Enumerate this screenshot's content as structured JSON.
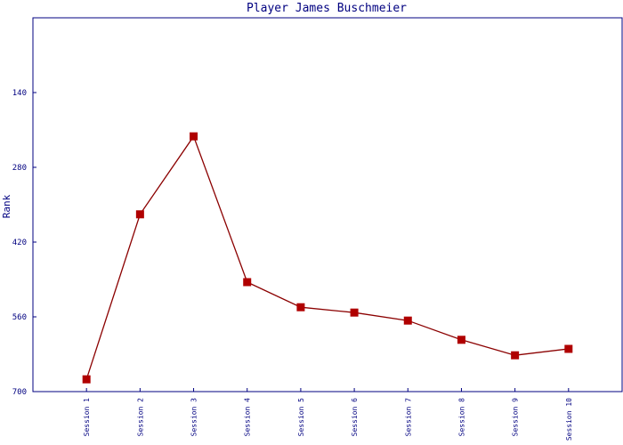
{
  "chart_data": {
    "type": "line",
    "title": "Player James Buschmeier",
    "ylabel": "Rank",
    "categories": [
      "Session 1",
      "Session 2",
      "Session 3",
      "Session 4",
      "Session 5",
      "Session 6",
      "Session 7",
      "Session 8",
      "Session 9",
      "Session 10"
    ],
    "series": [
      {
        "name": "Rank",
        "color": "#b00000",
        "values": [
          677,
          368,
          222,
          495,
          542,
          552,
          567,
          603,
          632,
          620
        ]
      }
    ],
    "ylim": [
      700,
      0
    ],
    "yticks": [
      140,
      280,
      420,
      560,
      700
    ],
    "inverted_y": true,
    "grid": false
  }
}
